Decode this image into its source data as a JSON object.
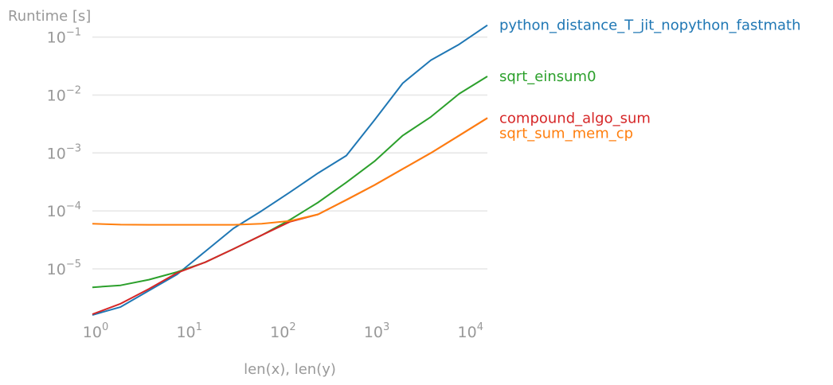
{
  "chart_data": {
    "type": "line",
    "ylabel": "Runtime [s]",
    "xlabel": "len(x), len(y)",
    "x_scale": "log",
    "y_scale": "log",
    "xlim": [
      1,
      16384
    ],
    "ylim": [
      1.5e-06,
      0.18
    ],
    "grid": "horizontal",
    "legend": "labels at right end of each line",
    "x_ticks": [
      {
        "value": 1,
        "base": "10",
        "exp": "0"
      },
      {
        "value": 10,
        "base": "10",
        "exp": "1"
      },
      {
        "value": 100,
        "base": "10",
        "exp": "2"
      },
      {
        "value": 1000,
        "base": "10",
        "exp": "3"
      },
      {
        "value": 10000,
        "base": "10",
        "exp": "4"
      }
    ],
    "y_ticks": [
      {
        "value": 1e-05,
        "base": "10",
        "exp": "−5"
      },
      {
        "value": 0.0001,
        "base": "10",
        "exp": "−4"
      },
      {
        "value": 0.001,
        "base": "10",
        "exp": "−3"
      },
      {
        "value": 0.01,
        "base": "10",
        "exp": "−2"
      },
      {
        "value": 0.1,
        "base": "10",
        "exp": "−1"
      }
    ],
    "x": [
      1,
      2,
      4,
      8,
      16,
      32,
      64,
      128,
      256,
      512,
      1024,
      2048,
      4096,
      8192,
      16384
    ],
    "series": [
      {
        "name": "python_distance_T_jit_nopython_fastmath",
        "color": "#1f77b4",
        "values": [
          1.6e-06,
          2.2e-06,
          4.2e-06,
          8e-06,
          2e-05,
          5e-05,
          0.0001,
          0.00021,
          0.00045,
          0.0009,
          0.0037,
          0.016,
          0.04,
          0.075,
          0.16
        ]
      },
      {
        "name": "sqrt_einsum0",
        "color": "#2ca02c",
        "values": [
          4.8e-06,
          5.2e-06,
          6.5e-06,
          8.8e-06,
          1.3e-05,
          2.2e-05,
          3.8e-05,
          7e-05,
          0.00014,
          0.00031,
          0.00072,
          0.002,
          0.0042,
          0.0105,
          0.021
        ]
      },
      {
        "name": "compound_algo_sum",
        "color": "#d62728",
        "values": [
          1.65e-06,
          2.5e-06,
          4.5e-06,
          8.5e-06,
          1.3e-05,
          2.2e-05,
          3.8e-05,
          6.5e-05,
          8.7e-05,
          0.000155,
          0.00028,
          0.00053,
          0.001,
          0.002,
          0.004
        ]
      },
      {
        "name": "sqrt_sum_mem_cp",
        "color": "#ff7f0e",
        "values": [
          6e-05,
          5.8e-05,
          5.75e-05,
          5.75e-05,
          5.75e-05,
          5.75e-05,
          6e-05,
          6.7e-05,
          8.7e-05,
          0.000155,
          0.00028,
          0.00053,
          0.001,
          0.002,
          0.004
        ]
      }
    ]
  }
}
